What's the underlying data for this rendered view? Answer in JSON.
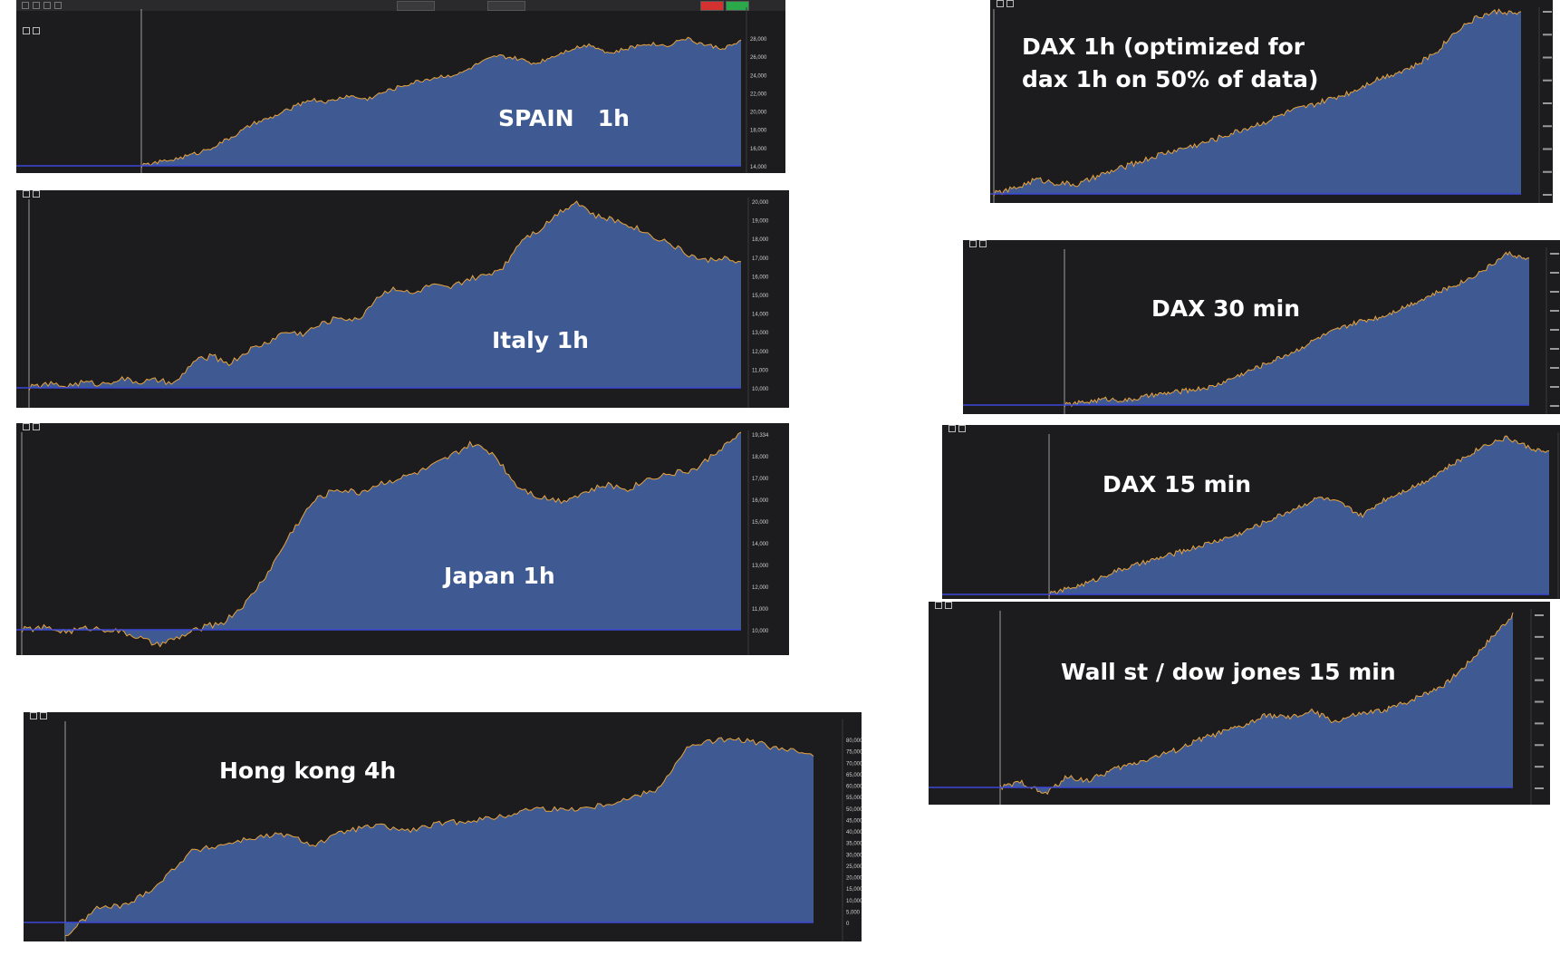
{
  "colors": {
    "area_fill": "#3f5a92",
    "area_line": "#e8a33a",
    "baseline": "#3b47d6",
    "panel_bg": "#1c1c1e",
    "label": "#ffffff"
  },
  "panels": [
    {
      "id": "spain",
      "label": "SPAIN   1h"
    },
    {
      "id": "italy",
      "label": "Italy 1h"
    },
    {
      "id": "japan",
      "label": "Japan 1h"
    },
    {
      "id": "hongkong",
      "label": "Hong kong 4h"
    },
    {
      "id": "dax1h",
      "label": "DAX 1h (optimized for\ndax 1h on 50% of data)"
    },
    {
      "id": "dax30",
      "label": "DAX 30 min"
    },
    {
      "id": "dax15",
      "label": "DAX 15 min"
    },
    {
      "id": "wallst",
      "label": "Wall st / dow jones 15 min"
    }
  ],
  "chart_data": [
    {
      "type": "area",
      "id": "spain",
      "title": "SPAIN   1h",
      "y_ticks": [
        "28,000",
        "26,000",
        "24,000",
        "22,000",
        "20,000",
        "18,000",
        "16,000",
        "14,000"
      ],
      "values": [
        0,
        3,
        6,
        10,
        16,
        24,
        33,
        38,
        45,
        52,
        50,
        55,
        52,
        58,
        63,
        67,
        70,
        72,
        80,
        86,
        84,
        80,
        86,
        92,
        95,
        88,
        92,
        96,
        94,
        100,
        95,
        92,
        97
      ]
    },
    {
      "type": "area",
      "id": "italy",
      "title": "Italy 1h",
      "y_ticks": [
        "20,000",
        "19,000",
        "18,000",
        "17,000",
        "16,000",
        "15,000",
        "14,000",
        "13,000",
        "12,000",
        "11,000",
        "10,000"
      ],
      "values": [
        0,
        2,
        1,
        3,
        2,
        5,
        3,
        4,
        2,
        14,
        17,
        13,
        20,
        24,
        30,
        29,
        34,
        38,
        36,
        48,
        54,
        50,
        55,
        53,
        58,
        60,
        65,
        80,
        85,
        94,
        100,
        92,
        90,
        87,
        82,
        78,
        72,
        68,
        70,
        66
      ]
    },
    {
      "type": "area",
      "id": "japan",
      "title": "Japan 1h",
      "y_ticks": [
        "19,334",
        "18,000",
        "17,000",
        "16,000",
        "15,000",
        "14,000",
        "13,000",
        "12,000",
        "11,000",
        "10,000"
      ],
      "values": [
        0,
        1,
        -1,
        1,
        0,
        -3,
        -8,
        -4,
        1,
        4,
        14,
        30,
        50,
        66,
        72,
        70,
        75,
        78,
        82,
        88,
        95,
        90,
        74,
        68,
        66,
        70,
        74,
        72,
        78,
        80,
        82,
        92,
        100
      ]
    },
    {
      "type": "area",
      "id": "hongkong",
      "title": "Hong kong 4h",
      "y_ticks": [
        "80,000",
        "75,000",
        "70,000",
        "65,000",
        "60,000",
        "55,000",
        "50,000",
        "45,000",
        "40,000",
        "35,000",
        "30,000",
        "25,000",
        "20,000",
        "15,000",
        "10,000",
        "5,000",
        "0"
      ],
      "values": [
        -8,
        8,
        10,
        22,
        40,
        44,
        48,
        50,
        44,
        52,
        55,
        52,
        56,
        58,
        60,
        65,
        64,
        66,
        70,
        76,
        100,
        104,
        103,
        98,
        96
      ]
    },
    {
      "type": "area",
      "id": "dax1h",
      "title": "DAX 1h (optimized for dax 1h on 50% of data)",
      "y_ticks": [],
      "values": [
        0,
        3,
        8,
        6,
        5,
        10,
        14,
        18,
        22,
        25,
        28,
        32,
        36,
        40,
        45,
        48,
        52,
        56,
        62,
        66,
        70,
        78,
        90,
        97,
        100,
        98
      ]
    },
    {
      "type": "area",
      "id": "dax30",
      "title": "DAX 30 min",
      "y_ticks": [],
      "values": [
        0,
        2,
        4,
        3,
        6,
        8,
        10,
        12,
        18,
        24,
        30,
        36,
        44,
        50,
        55,
        58,
        64,
        70,
        76,
        82,
        90,
        100,
        95
      ]
    },
    {
      "type": "area",
      "id": "dax15",
      "title": "DAX 15 min",
      "y_ticks": [],
      "values": [
        0,
        4,
        8,
        14,
        18,
        22,
        26,
        30,
        34,
        38,
        44,
        50,
        56,
        62,
        58,
        50,
        60,
        66,
        72,
        80,
        88,
        96,
        100,
        94,
        90
      ]
    },
    {
      "type": "area",
      "id": "wallst",
      "title": "Wall st / dow jones 15 min",
      "y_ticks": [],
      "values": [
        0,
        3,
        -4,
        6,
        4,
        10,
        14,
        18,
        22,
        28,
        32,
        36,
        42,
        40,
        44,
        38,
        42,
        44,
        48,
        54,
        60,
        72,
        86,
        100
      ]
    }
  ]
}
